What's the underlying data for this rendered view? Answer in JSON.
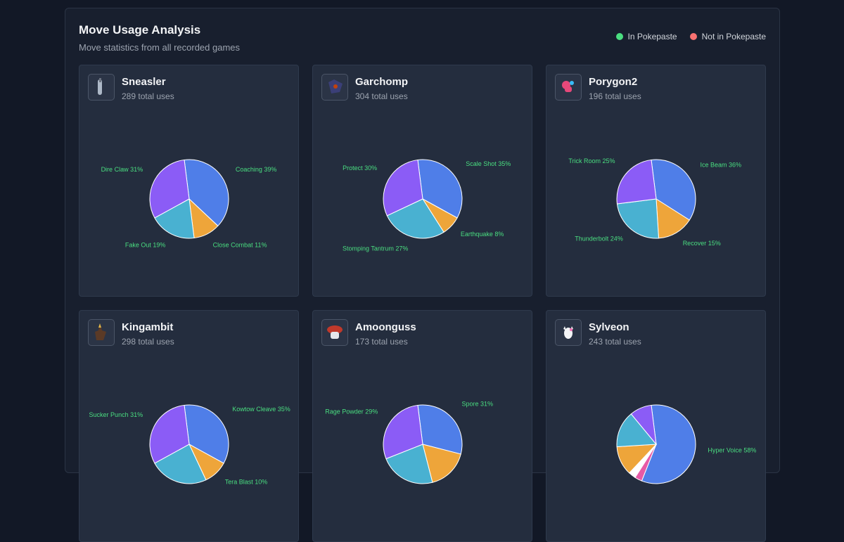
{
  "header": {
    "title": "Move Usage Analysis",
    "subtitle": "Move statistics from all recorded games"
  },
  "legend": [
    {
      "label": "In Pokepaste",
      "color": "#4ade80"
    },
    {
      "label": "Not in Pokepaste",
      "color": "#f87171"
    }
  ],
  "palette": [
    "#4f7ee8",
    "#eea53a",
    "#49b1d1",
    "#8b5cf6",
    "#ffffff",
    "#e75aa6"
  ],
  "chart_data": [
    {
      "type": "pie",
      "title": "Sneasler",
      "subtitle": "289 total uses",
      "icon": "sneasler-sprite-icon",
      "slices": [
        {
          "label": "Coaching 39%",
          "value": 39
        },
        {
          "label": "Close Combat 11%",
          "value": 11
        },
        {
          "label": "Fake Out 19%",
          "value": 19
        },
        {
          "label": "Dire Claw 31%",
          "value": 31
        }
      ]
    },
    {
      "type": "pie",
      "title": "Garchomp",
      "subtitle": "304 total uses",
      "icon": "garchomp-sprite-icon",
      "slices": [
        {
          "label": "Scale Shot 35%",
          "value": 35
        },
        {
          "label": "Earthquake 8%",
          "value": 8
        },
        {
          "label": "Stomping Tantrum 27%",
          "value": 27
        },
        {
          "label": "Protect 30%",
          "value": 30
        }
      ]
    },
    {
      "type": "pie",
      "title": "Porygon2",
      "subtitle": "196 total uses",
      "icon": "porygon2-sprite-icon",
      "slices": [
        {
          "label": "Ice Beam 36%",
          "value": 36
        },
        {
          "label": "Recover 15%",
          "value": 15
        },
        {
          "label": "Thunderbolt 24%",
          "value": 24
        },
        {
          "label": "Trick Room 25%",
          "value": 25
        }
      ]
    },
    {
      "type": "pie",
      "title": "Kingambit",
      "subtitle": "298 total uses",
      "icon": "kingambit-sprite-icon",
      "slices": [
        {
          "label": "Kowtow Cleave 35%",
          "value": 35
        },
        {
          "label": "Tera Blast 10%",
          "value": 10
        },
        {
          "label": "",
          "value": 24
        },
        {
          "label": "Sucker Punch 31%",
          "value": 31
        }
      ]
    },
    {
      "type": "pie",
      "title": "Amoonguss",
      "subtitle": "173 total uses",
      "icon": "amoonguss-sprite-icon",
      "slices": [
        {
          "label": "Spore 31%",
          "value": 31
        },
        {
          "label": "",
          "value": 17
        },
        {
          "label": "",
          "value": 23
        },
        {
          "label": "Rage Powder 29%",
          "value": 29
        }
      ]
    },
    {
      "type": "pie",
      "title": "Sylveon",
      "subtitle": "243 total uses",
      "icon": "sylveon-sprite-icon",
      "slices": [
        {
          "label": "Hyper Voice 58%",
          "value": 58
        },
        {
          "label": "",
          "value": 3
        },
        {
          "label": "",
          "value": 3
        },
        {
          "label": "",
          "value": 12
        },
        {
          "label": "",
          "value": 15
        },
        {
          "label": "",
          "value": 9
        }
      ],
      "colors": [
        "#4f7ee8",
        "#e75aa6",
        "#ffffff",
        "#eea53a",
        "#49b1d1",
        "#8b5cf6"
      ]
    }
  ]
}
